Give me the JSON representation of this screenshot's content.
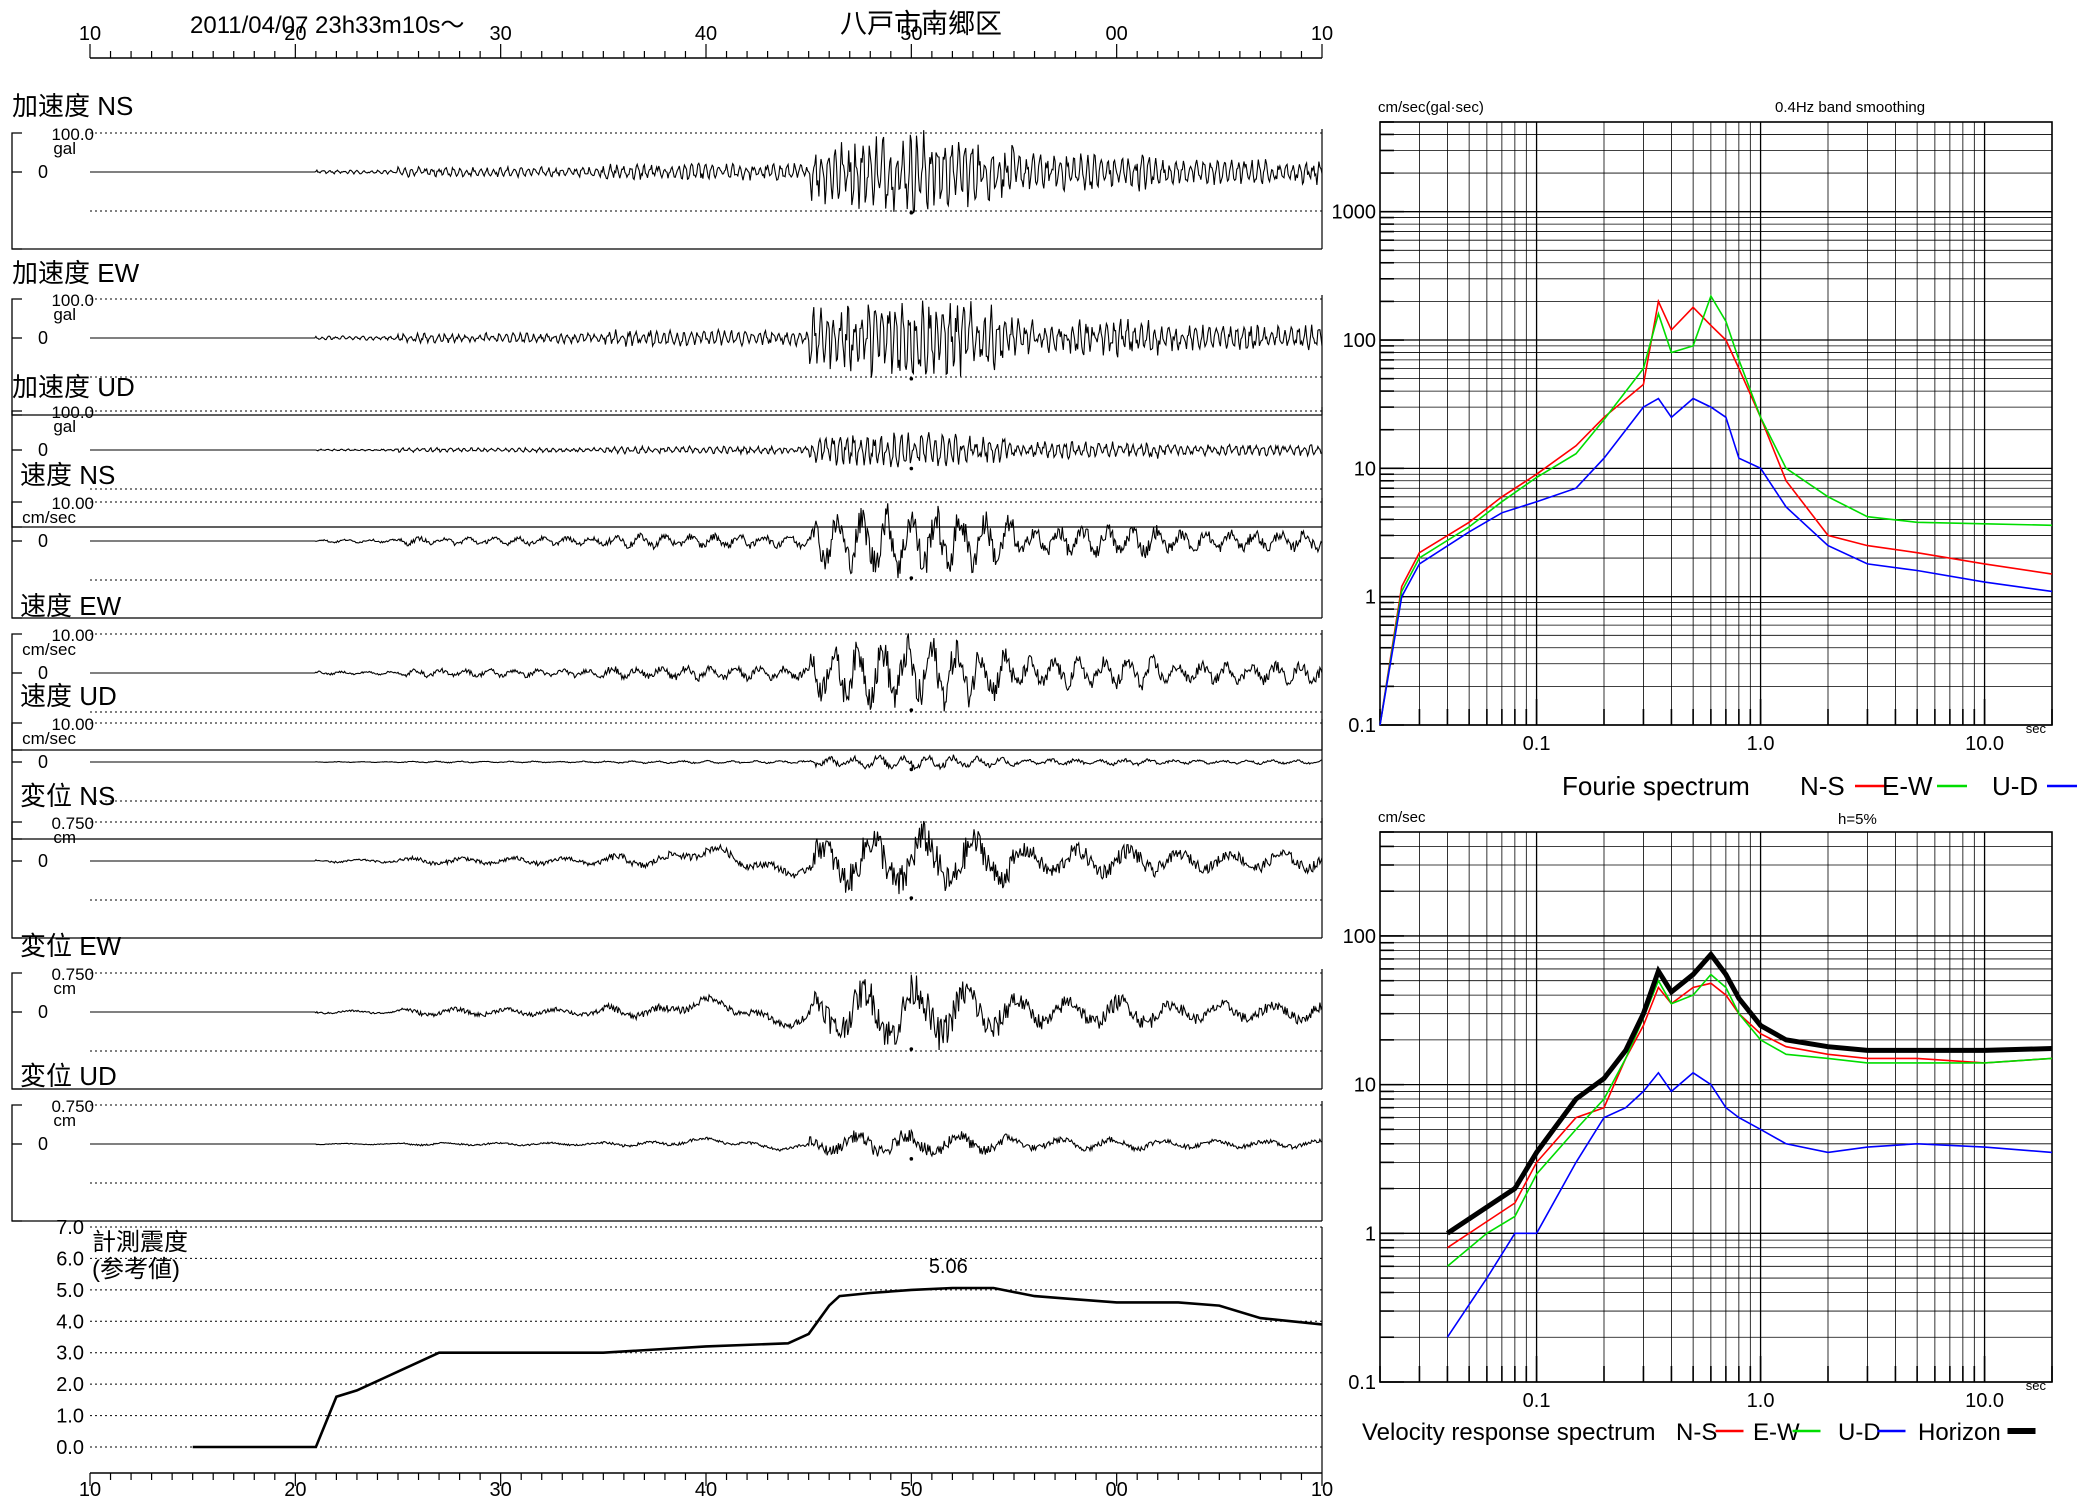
{
  "header": {
    "datetime": "2011/04/07  23h33m10s〜",
    "station": "八戸市南郷区",
    "time_ticks": [
      "10",
      "20",
      "30",
      "40",
      "50",
      "00",
      "10"
    ]
  },
  "chart_data": [
    {
      "type": "line",
      "id": "waveforms",
      "x_ticks": [
        "10",
        "20",
        "30",
        "40",
        "50",
        "00",
        "10"
      ],
      "series": [
        {
          "label": "加速度 NS",
          "scale_value": "100.0",
          "unit": "gal",
          "zero": "0",
          "amp": 0.55,
          "color": "#000000"
        },
        {
          "label": "加速度 EW",
          "scale_value": "100.0",
          "unit": "gal",
          "zero": "0",
          "amp": 0.55,
          "color": "#000000"
        },
        {
          "label": "加速度 UD",
          "scale_value": "100.0",
          "unit": "gal",
          "zero": "0",
          "amp": 0.25,
          "color": "#000000"
        },
        {
          "label": "速度 NS",
          "scale_value": "10.00",
          "unit": "cm/sec",
          "zero": "0",
          "amp": 0.5,
          "color": "#000000"
        },
        {
          "label": "速度 EW",
          "scale_value": "10.00",
          "unit": "cm/sec",
          "zero": "0",
          "amp": 0.5,
          "color": "#000000"
        },
        {
          "label": "速度 UD",
          "scale_value": "10.00",
          "unit": "cm/sec",
          "zero": "0",
          "amp": 0.1,
          "color": "#000000"
        },
        {
          "label": "変位 NS",
          "scale_value": "0.750",
          "unit": "cm",
          "zero": "0",
          "amp": 0.5,
          "color": "#000000"
        },
        {
          "label": "変位 EW",
          "scale_value": "0.750",
          "unit": "cm",
          "zero": "0",
          "amp": 0.5,
          "color": "#000000"
        },
        {
          "label": "変位 UD",
          "scale_value": "0.750",
          "unit": "cm",
          "zero": "0",
          "amp": 0.2,
          "color": "#000000"
        }
      ]
    },
    {
      "type": "line",
      "id": "intensity",
      "title": "計測震度\n(参考値)",
      "peak_label": "5.06",
      "y_ticks": [
        "7.0",
        "6.0",
        "5.0",
        "4.0",
        "3.0",
        "2.0",
        "1.0",
        "0.0"
      ],
      "ylim": [
        0,
        7
      ],
      "x_ticks": [
        "10",
        "20",
        "30",
        "40",
        "50",
        "00",
        "10"
      ],
      "x": [
        15,
        21,
        22,
        23,
        25,
        27,
        30,
        35,
        40,
        44,
        45,
        46,
        46.5,
        48,
        50,
        52,
        54,
        56,
        58,
        60,
        63,
        65,
        67,
        70
      ],
      "y": [
        0,
        0,
        1.6,
        1.8,
        2.4,
        3.0,
        3.0,
        3.0,
        3.2,
        3.3,
        3.6,
        4.5,
        4.8,
        4.9,
        5.0,
        5.06,
        5.06,
        4.8,
        4.7,
        4.6,
        4.6,
        4.5,
        4.1,
        3.9
      ]
    },
    {
      "type": "line",
      "id": "fourier",
      "title": "Fourie spectrum",
      "ylabel": "cm/sec(gal·sec)",
      "note": "0.4Hz band smoothing",
      "xunit": "sec",
      "xscale": "log",
      "yscale": "log",
      "xlim": [
        0.02,
        20
      ],
      "ylim": [
        0.1,
        5000
      ],
      "x_ticks": [
        "0.1",
        "1.0",
        "10.0"
      ],
      "y_ticks": [
        "1000",
        "100",
        "10",
        "1",
        "0.1"
      ],
      "x": [
        0.02,
        0.025,
        0.03,
        0.05,
        0.07,
        0.1,
        0.15,
        0.2,
        0.3,
        0.35,
        0.4,
        0.5,
        0.6,
        0.7,
        0.8,
        1.0,
        1.3,
        2.0,
        3.0,
        5.0,
        10.0,
        20.0
      ],
      "series": [
        {
          "name": "N-S",
          "color": "#ff0000",
          "values": [
            0.1,
            1.2,
            2.2,
            3.8,
            6.0,
            9.0,
            15,
            25,
            45,
            200,
            120,
            180,
            130,
            100,
            60,
            25,
            8,
            3,
            2.5,
            2.2,
            1.8,
            1.5
          ]
        },
        {
          "name": "E-W",
          "color": "#00dd00",
          "values": [
            0.1,
            1.1,
            2.0,
            3.5,
            5.5,
            8.5,
            13,
            24,
            60,
            160,
            80,
            90,
            220,
            140,
            70,
            25,
            10,
            6,
            4.2,
            3.8,
            3.7,
            3.6
          ]
        },
        {
          "name": "U-D",
          "color": "#0000ff",
          "values": [
            0.1,
            1.0,
            1.8,
            3.2,
            4.5,
            5.5,
            7,
            12,
            30,
            35,
            25,
            35,
            30,
            25,
            12,
            10,
            5,
            2.5,
            1.8,
            1.6,
            1.3,
            1.1
          ]
        }
      ],
      "legend": [
        "N-S",
        "E-W",
        "U-D"
      ]
    },
    {
      "type": "line",
      "id": "response",
      "title": "Velocity response spectrum",
      "ylabel": "cm/sec",
      "note": "h=5%",
      "xunit": "sec",
      "xscale": "log",
      "yscale": "log",
      "xlim": [
        0.02,
        20
      ],
      "ylim": [
        0.1,
        500
      ],
      "x_ticks": [
        "0.1",
        "1.0",
        "10.0"
      ],
      "y_ticks": [
        "100",
        "10",
        "1",
        "0.1"
      ],
      "x": [
        0.04,
        0.06,
        0.08,
        0.1,
        0.15,
        0.2,
        0.25,
        0.3,
        0.35,
        0.4,
        0.5,
        0.6,
        0.7,
        0.8,
        1.0,
        1.3,
        2.0,
        3.0,
        5.0,
        10.0,
        20.0
      ],
      "series": [
        {
          "name": "N-S",
          "color": "#ff0000",
          "values": [
            0.8,
            1.2,
            1.6,
            3,
            6,
            7,
            15,
            25,
            45,
            35,
            45,
            48,
            40,
            30,
            22,
            18,
            16,
            15,
            15,
            14,
            15
          ]
        },
        {
          "name": "E-W",
          "color": "#00dd00",
          "values": [
            0.6,
            1.0,
            1.3,
            2.5,
            5,
            8,
            15,
            28,
            50,
            35,
            40,
            55,
            45,
            30,
            20,
            16,
            15,
            14,
            14,
            14,
            15
          ]
        },
        {
          "name": "U-D",
          "color": "#0000ff",
          "values": [
            0.2,
            0.5,
            1.0,
            1.0,
            3,
            6,
            7,
            9,
            12,
            9,
            12,
            10,
            7,
            6,
            5,
            4,
            3.5,
            3.8,
            4,
            3.8,
            3.5
          ]
        },
        {
          "name": "Horizon",
          "color": "#000000",
          "values": [
            1.0,
            1.5,
            2.0,
            3.5,
            8,
            11,
            17,
            30,
            58,
            42,
            55,
            75,
            55,
            38,
            25,
            20,
            18,
            17,
            17,
            17,
            17.5
          ]
        }
      ],
      "legend": [
        "N-S",
        "E-W",
        "U-D",
        "Horizon"
      ]
    }
  ]
}
